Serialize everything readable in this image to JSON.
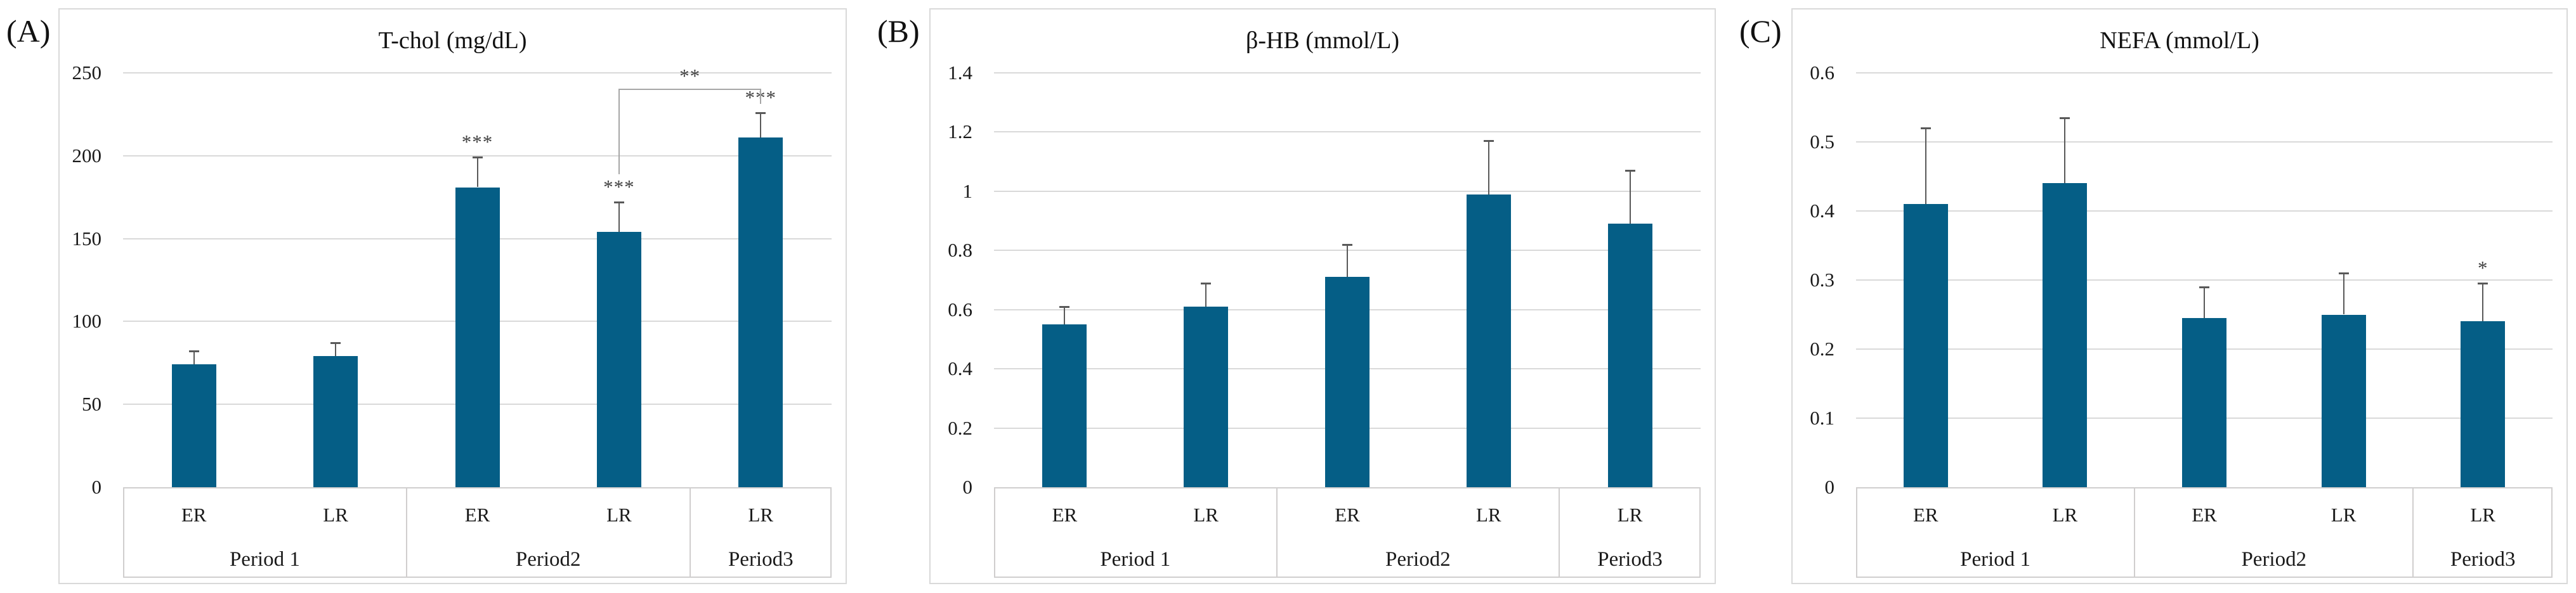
{
  "style": {
    "bar_color": "#055E86",
    "grid_color": "#D9D9D9",
    "table_border_color": "#D0CECE",
    "error_bar_color": "#595959",
    "bracket_color": "#A6A6A6",
    "text_color": "#1A1A1A"
  },
  "chart_data": [
    {
      "type": "bar",
      "panel_label": "(A)",
      "title": "T-chol (mg/dL)",
      "categories": [
        "ER",
        "LR",
        "ER",
        "LR",
        "LR"
      ],
      "group_labels": [
        {
          "label": "Period 1",
          "span": 2
        },
        {
          "label": "Period2",
          "span": 2
        },
        {
          "label": "Period3",
          "span": 1
        }
      ],
      "values": [
        74,
        79,
        181,
        154,
        211
      ],
      "errors_plus": [
        8,
        8,
        18,
        18,
        15
      ],
      "significance": [
        "",
        "",
        "***",
        "***",
        "***"
      ],
      "comparison": {
        "from_bar": 3,
        "to_bar": 4,
        "label": "**"
      },
      "ylim": [
        0,
        250
      ],
      "ytick_step": 50,
      "ytick_labels": [
        "0",
        "50",
        "100",
        "150",
        "200",
        "250"
      ],
      "grid": true,
      "legend": "none"
    },
    {
      "type": "bar",
      "panel_label": "(B)",
      "title": "β-HB (mmol/L)",
      "categories": [
        "ER",
        "LR",
        "ER",
        "LR",
        "LR"
      ],
      "group_labels": [
        {
          "label": "Period 1",
          "span": 2
        },
        {
          "label": "Period2",
          "span": 2
        },
        {
          "label": "Period3",
          "span": 1
        }
      ],
      "values": [
        0.55,
        0.61,
        0.71,
        0.99,
        0.89
      ],
      "errors_plus": [
        0.06,
        0.08,
        0.11,
        0.18,
        0.18
      ],
      "significance": [
        "",
        "",
        "",
        "",
        ""
      ],
      "comparison": null,
      "ylim": [
        0,
        1.4
      ],
      "ytick_step": 0.2,
      "ytick_labels": [
        "0",
        "0.2",
        "0.4",
        "0.6",
        "0.8",
        "1",
        "1.2",
        "1.4"
      ],
      "grid": true,
      "legend": "none"
    },
    {
      "type": "bar",
      "panel_label": "(C)",
      "title": "NEFA (mmol/L)",
      "categories": [
        "ER",
        "LR",
        "ER",
        "LR",
        "LR"
      ],
      "group_labels": [
        {
          "label": "Period 1",
          "span": 2
        },
        {
          "label": "Period2",
          "span": 2
        },
        {
          "label": "Period3",
          "span": 1
        }
      ],
      "values": [
        0.41,
        0.44,
        0.245,
        0.25,
        0.24
      ],
      "errors_plus": [
        0.11,
        0.095,
        0.045,
        0.06,
        0.055
      ],
      "significance": [
        "",
        "",
        "",
        "",
        "*"
      ],
      "comparison": null,
      "ylim": [
        0,
        0.6
      ],
      "ytick_step": 0.1,
      "ytick_labels": [
        "0",
        "0.1",
        "0.2",
        "0.3",
        "0.4",
        "0.5",
        "0.6"
      ],
      "grid": true,
      "legend": "none"
    }
  ]
}
